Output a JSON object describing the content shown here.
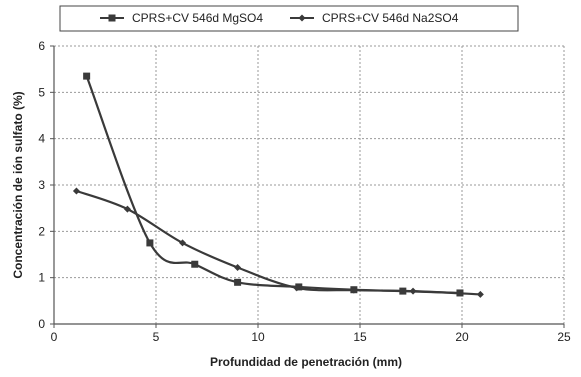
{
  "chart_data": {
    "type": "line",
    "xlabel": "Profundidad de penetración (mm)",
    "ylabel": "Concentración de ión sulfato (%)",
    "xlim": [
      0,
      25
    ],
    "ylim": [
      0,
      6
    ],
    "xticks": [
      0,
      5,
      10,
      15,
      20,
      25
    ],
    "yticks": [
      0,
      1,
      2,
      3,
      4,
      5,
      6
    ],
    "grid": true,
    "legend_position": "top",
    "series": [
      {
        "name": "CPRS+CV 546d MgSO4",
        "marker": "square",
        "color": "#3a3a3a",
        "x": [
          1.6,
          4.7,
          6.9,
          9.0,
          12.0,
          14.7,
          17.1,
          19.9
        ],
        "y": [
          5.35,
          1.75,
          1.29,
          0.9,
          0.8,
          0.74,
          0.71,
          0.67
        ]
      },
      {
        "name": "CPRS+CV 546d Na2SO4",
        "marker": "diamond",
        "color": "#3a3a3a",
        "x": [
          1.1,
          3.6,
          6.3,
          9.0,
          11.9,
          14.7,
          17.6,
          20.9
        ],
        "y": [
          2.87,
          2.48,
          1.75,
          1.22,
          0.78,
          0.73,
          0.71,
          0.64
        ]
      }
    ]
  }
}
